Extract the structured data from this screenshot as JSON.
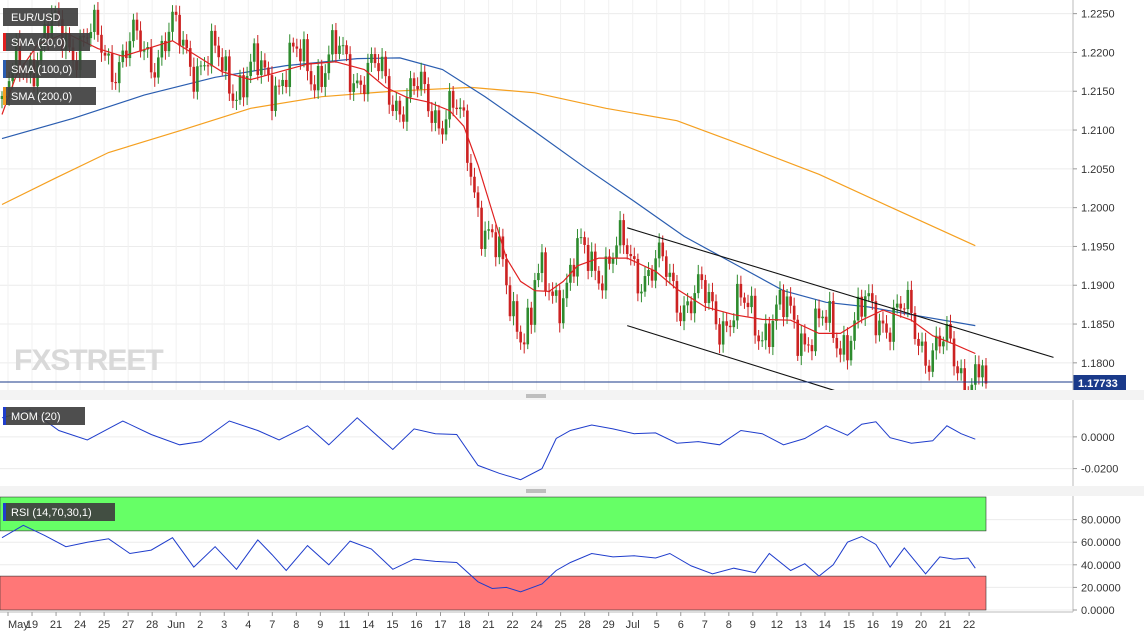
{
  "symbol": "EUR/USD",
  "watermark": "FXSTREET",
  "price_panel": {
    "legend": [
      {
        "label": "SMA (20,0)",
        "color": "#e02020"
      },
      {
        "label": "SMA (100,0)",
        "color": "#2a5db0"
      },
      {
        "label": "SMA (200,0)",
        "color": "#f5a020"
      }
    ],
    "y_ticks": [
      "1.2250",
      "1.2200",
      "1.2150",
      "1.2100",
      "1.2050",
      "1.2000",
      "1.1950",
      "1.1900",
      "1.1850",
      "1.1800"
    ],
    "last_price": "1.17733",
    "ylim": [
      1.1765,
      1.2265
    ]
  },
  "mom_panel": {
    "label": "MOM (20)",
    "y_ticks": [
      "0.0000",
      "-0.0200"
    ],
    "ylim": [
      -0.031,
      0.022
    ]
  },
  "rsi_panel": {
    "label": "RSI (14,70,30,1)",
    "y_ticks": [
      "80.0000",
      "60.0000",
      "40.0000",
      "20.0000",
      "0.0000"
    ],
    "ylim": [
      0,
      100
    ],
    "overbought": 70,
    "oversold": 30,
    "overbought_color": "#66ff66",
    "oversold_color": "#ff7777"
  },
  "x_ticks": [
    "May",
    "19",
    "21",
    "24",
    "25",
    "27",
    "28",
    "Jun",
    "2",
    "3",
    "4",
    "7",
    "8",
    "9",
    "11",
    "14",
    "15",
    "16",
    "17",
    "18",
    "21",
    "22",
    "24",
    "25",
    "28",
    "29",
    "Jul",
    "5",
    "6",
    "7",
    "8",
    "9",
    "12",
    "13",
    "14",
    "15",
    "16",
    "19",
    "20",
    "21",
    "22"
  ],
  "chart_data": {
    "type": "candlestick",
    "title": "EUR/USD",
    "ylim": [
      1.1765,
      1.2265
    ],
    "last_price": 1.17733,
    "overlays": [
      {
        "name": "SMA (20,0)",
        "color": "#e02020",
        "values": [
          [
            0,
            1.212
          ],
          [
            4,
            1.217
          ],
          [
            10,
            1.221
          ],
          [
            18,
            1.2225
          ],
          [
            27,
            1.2205
          ],
          [
            34,
            1.2195
          ],
          [
            41,
            1.2205
          ],
          [
            48,
            1.2215
          ],
          [
            55,
            1.2195
          ],
          [
            62,
            1.2175
          ],
          [
            70,
            1.2165
          ],
          [
            78,
            1.2175
          ],
          [
            86,
            1.2185
          ],
          [
            94,
            1.2188
          ],
          [
            102,
            1.2178
          ],
          [
            108,
            1.2155
          ],
          [
            114,
            1.2142
          ],
          [
            120,
            1.2136
          ],
          [
            126,
            1.2125
          ],
          [
            130,
            1.2105
          ],
          [
            134,
            1.2055
          ],
          [
            138,
            1.1995
          ],
          [
            142,
            1.1935
          ],
          [
            146,
            1.1905
          ],
          [
            150,
            1.1893
          ],
          [
            154,
            1.1892
          ],
          [
            158,
            1.1905
          ],
          [
            162,
            1.1925
          ],
          [
            168,
            1.1935
          ],
          [
            176,
            1.1935
          ],
          [
            184,
            1.1918
          ],
          [
            190,
            1.1895
          ],
          [
            198,
            1.1872
          ],
          [
            206,
            1.1862
          ],
          [
            214,
            1.1856
          ],
          [
            222,
            1.1855
          ],
          [
            230,
            1.1838
          ],
          [
            236,
            1.1838
          ],
          [
            242,
            1.1855
          ],
          [
            248,
            1.1868
          ],
          [
            256,
            1.1855
          ],
          [
            262,
            1.1835
          ],
          [
            268,
            1.1824
          ],
          [
            274,
            1.1812
          ]
        ]
      },
      {
        "name": "SMA (100,0)",
        "color": "#2a5db0",
        "values": [
          [
            0,
            1.2089
          ],
          [
            20,
            1.2115
          ],
          [
            40,
            1.2145
          ],
          [
            60,
            1.2168
          ],
          [
            80,
            1.2183
          ],
          [
            100,
            1.2192
          ],
          [
            112,
            1.2193
          ],
          [
            124,
            1.2178
          ],
          [
            136,
            1.2143
          ],
          [
            150,
            1.2098
          ],
          [
            164,
            1.2052
          ],
          [
            178,
            1.2008
          ],
          [
            192,
            1.1963
          ],
          [
            206,
            1.1928
          ],
          [
            220,
            1.1893
          ],
          [
            232,
            1.1878
          ],
          [
            244,
            1.1872
          ],
          [
            256,
            1.1862
          ],
          [
            274,
            1.1848
          ]
        ]
      },
      {
        "name": "SMA (200,0)",
        "color": "#f5a020",
        "values": [
          [
            0,
            1.2004
          ],
          [
            15,
            1.2038
          ],
          [
            30,
            1.2071
          ],
          [
            50,
            1.2099
          ],
          [
            70,
            1.2128
          ],
          [
            90,
            1.2143
          ],
          [
            110,
            1.215
          ],
          [
            132,
            1.2155
          ],
          [
            150,
            1.2148
          ],
          [
            170,
            1.2128
          ],
          [
            190,
            1.2112
          ],
          [
            210,
            1.2078
          ],
          [
            230,
            1.2043
          ],
          [
            250,
            1.2001
          ],
          [
            274,
            1.1951
          ]
        ]
      }
    ],
    "channel_lines": [
      {
        "from": [
          176,
          1.1974
        ],
        "to": [
          296,
          1.1807
        ]
      },
      {
        "from": [
          176,
          1.1848
        ],
        "to": [
          236,
          1.1762
        ]
      }
    ],
    "indicators": [
      {
        "name": "MOM (20)",
        "color": "#1f3dcc",
        "values": [
          [
            0,
            0.012
          ],
          [
            8,
            0.017
          ],
          [
            16,
            0.004
          ],
          [
            24,
            -0.002
          ],
          [
            34,
            0.01
          ],
          [
            42,
            0.0015
          ],
          [
            50,
            -0.005
          ],
          [
            56,
            -0.003
          ],
          [
            64,
            0.01
          ],
          [
            72,
            0.004
          ],
          [
            78,
            -0.002
          ],
          [
            86,
            0.007
          ],
          [
            92,
            -0.005
          ],
          [
            100,
            0.012
          ],
          [
            104,
            0.004
          ],
          [
            110,
            -0.008
          ],
          [
            116,
            0.005
          ],
          [
            122,
            0.002
          ],
          [
            128,
            0.0015
          ],
          [
            134,
            -0.018
          ],
          [
            140,
            -0.023
          ],
          [
            146,
            -0.027
          ],
          [
            152,
            -0.02
          ],
          [
            156,
            -0.001
          ],
          [
            160,
            0.004
          ],
          [
            166,
            0.0075
          ],
          [
            172,
            0.005
          ],
          [
            178,
            0.002
          ],
          [
            184,
            0.0025
          ],
          [
            190,
            -0.004
          ],
          [
            196,
            -0.003
          ],
          [
            202,
            -0.005
          ],
          [
            208,
            0.004
          ],
          [
            214,
            0.002
          ],
          [
            220,
            -0.005
          ],
          [
            226,
            -0.001
          ],
          [
            232,
            0.007
          ],
          [
            238,
            0.001
          ],
          [
            242,
            0.008
          ],
          [
            246,
            0.0095
          ],
          [
            250,
            -0.0005
          ],
          [
            256,
            -0.004
          ],
          [
            262,
            -0.0025
          ],
          [
            266,
            0.007
          ],
          [
            270,
            0.002
          ],
          [
            274,
            -0.0015
          ]
        ]
      },
      {
        "name": "RSI (14,70,30,1)",
        "color": "#1f3dcc",
        "values": [
          [
            0,
            64
          ],
          [
            6,
            75
          ],
          [
            12,
            66
          ],
          [
            18,
            56
          ],
          [
            24,
            60
          ],
          [
            30,
            63
          ],
          [
            36,
            50
          ],
          [
            42,
            53
          ],
          [
            48,
            64
          ],
          [
            54,
            38
          ],
          [
            60,
            56
          ],
          [
            66,
            36
          ],
          [
            72,
            62
          ],
          [
            76,
            49
          ],
          [
            80,
            35
          ],
          [
            86,
            57
          ],
          [
            92,
            40
          ],
          [
            98,
            61
          ],
          [
            104,
            54
          ],
          [
            110,
            36
          ],
          [
            116,
            45
          ],
          [
            122,
            43
          ],
          [
            128,
            42
          ],
          [
            134,
            25
          ],
          [
            138,
            19
          ],
          [
            142,
            20
          ],
          [
            146,
            16
          ],
          [
            152,
            23
          ],
          [
            156,
            35
          ],
          [
            160,
            42
          ],
          [
            166,
            50
          ],
          [
            172,
            47
          ],
          [
            178,
            48
          ],
          [
            184,
            46
          ],
          [
            188,
            50
          ],
          [
            194,
            39
          ],
          [
            200,
            32
          ],
          [
            206,
            37
          ],
          [
            212,
            33
          ],
          [
            216,
            50
          ],
          [
            222,
            35
          ],
          [
            226,
            41
          ],
          [
            230,
            30
          ],
          [
            234,
            40
          ],
          [
            238,
            60
          ],
          [
            242,
            65
          ],
          [
            246,
            58
          ],
          [
            250,
            38
          ],
          [
            254,
            55
          ],
          [
            260,
            32
          ],
          [
            264,
            47
          ],
          [
            268,
            45
          ],
          [
            272,
            46
          ],
          [
            274,
            37
          ]
        ]
      }
    ]
  }
}
